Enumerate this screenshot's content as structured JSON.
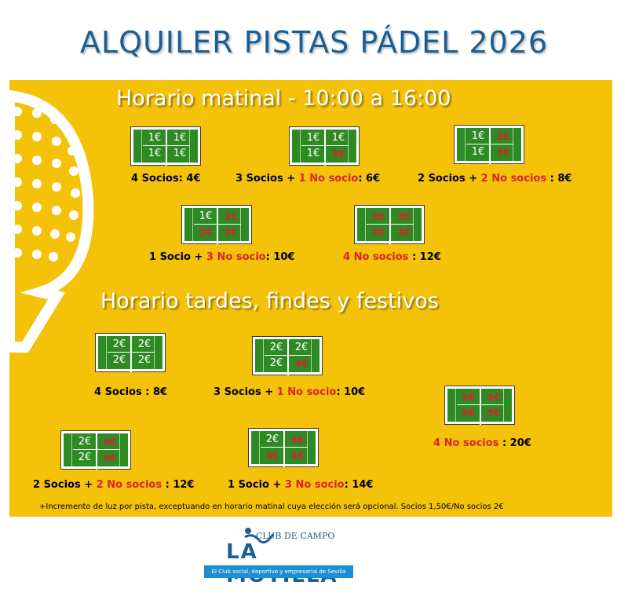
{
  "title": "ALQUILER PISTAS PÁDEL 2026",
  "morning": {
    "heading": "Horario matinal - 10:00 a 16:00",
    "options": [
      {
        "cells": [
          "1€",
          "1€",
          "1€",
          "1€"
        ],
        "ns": [
          false,
          false,
          false,
          false
        ],
        "socios": "4 Socios",
        "plus": "",
        "nosocio": "",
        "price": ": 4€"
      },
      {
        "cells": [
          "1€",
          "1€",
          "1€",
          "3€"
        ],
        "ns": [
          false,
          false,
          false,
          true
        ],
        "socios": "3 Socios",
        "plus": " + ",
        "nosocio": "1 No socio",
        "price": ": 6€"
      },
      {
        "cells": [
          "1€",
          "3€",
          "1€",
          "3€"
        ],
        "ns": [
          false,
          true,
          false,
          true
        ],
        "socios": "2 Socios",
        "plus": " + ",
        "nosocio": "2 No socios",
        "price": " : 8€"
      },
      {
        "cells": [
          "1€",
          "3€",
          "3€",
          "3€"
        ],
        "ns": [
          false,
          true,
          true,
          true
        ],
        "socios": "1 Socio",
        "plus": " + ",
        "nosocio": "3 No socio",
        "price": ": 10€"
      },
      {
        "cells": [
          "3€",
          "3€",
          "3€",
          "3€"
        ],
        "ns": [
          true,
          true,
          true,
          true
        ],
        "socios": "",
        "plus": "",
        "nosocio": "4 No socios",
        "price": " : 12€"
      }
    ]
  },
  "afternoon": {
    "heading": "Horario tardes, findes y festivos",
    "options": [
      {
        "cells": [
          "2€",
          "2€",
          "2€",
          "2€"
        ],
        "ns": [
          false,
          false,
          false,
          false
        ],
        "socios": "4 Socios",
        "plus": "",
        "nosocio": "",
        "price": " : 8€"
      },
      {
        "cells": [
          "2€",
          "2€",
          "2€",
          "4€"
        ],
        "ns": [
          false,
          false,
          false,
          true
        ],
        "socios": "3 Socios",
        "plus": " + ",
        "nosocio": "1 No socio",
        "price": ": 10€"
      },
      {
        "cells": [
          "5€",
          "5€",
          "5€",
          "5€"
        ],
        "ns": [
          true,
          true,
          true,
          true
        ],
        "socios": "",
        "plus": "",
        "nosocio": "4 No socios",
        "price": " : 20€"
      },
      {
        "cells": [
          "2€",
          "4€",
          "2€",
          "4€"
        ],
        "ns": [
          false,
          true,
          false,
          true
        ],
        "socios": "2 Socios",
        "plus": " + ",
        "nosocio": "2 No socios",
        "price": " : 12€"
      },
      {
        "cells": [
          "2€",
          "4€",
          "4€",
          "4€"
        ],
        "ns": [
          false,
          true,
          true,
          true
        ],
        "socios": "1 Socio",
        "plus": " + ",
        "nosocio": "3 No socio",
        "price": ": 14€"
      }
    ]
  },
  "footnote": "+Incremento de luz por pista, exceptuando en horario matinal cuya elección será opcional. Socios 1,50€/No socios 2€",
  "logo": {
    "club": "CLUB DE CAMPO",
    "name": "LA MOTILLA",
    "tagline": "El Club social, deportivo y empresarial de Sevilla"
  }
}
